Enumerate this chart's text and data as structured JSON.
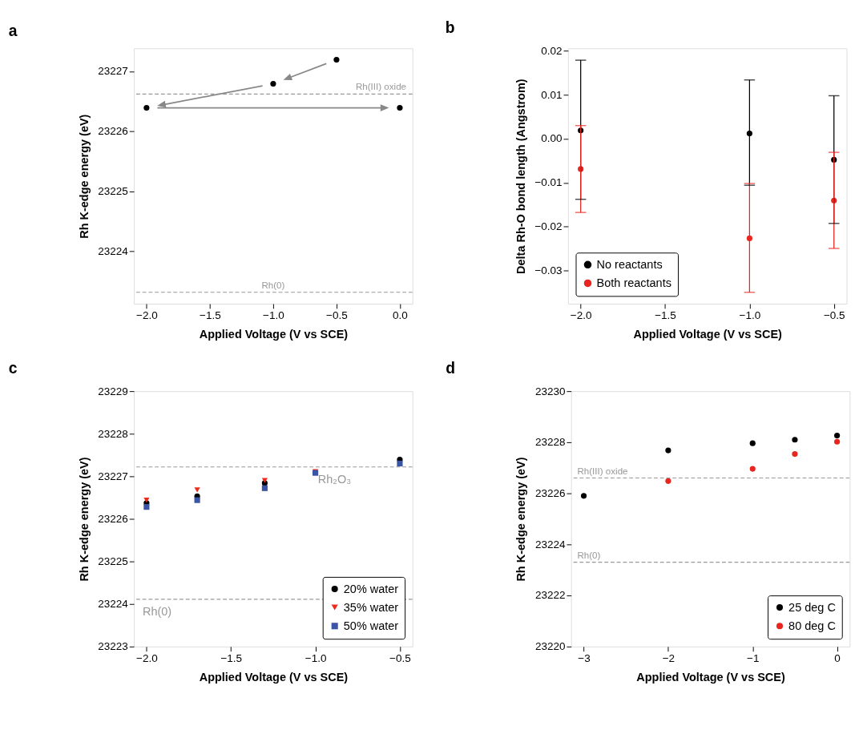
{
  "chart_data": [
    {
      "type": "scatter",
      "title": "a",
      "xlabel": "Applied Voltage (V vs SCE)",
      "ylabel": "Rh K-edge energy (eV)",
      "x": [
        -2,
        -1,
        -0.5,
        0
      ],
      "values": [
        23226.39,
        23226.79,
        23227.19,
        23226.39
      ],
      "color": "#000000",
      "marker": "circle",
      "xlim": [
        -2.1,
        0.1
      ],
      "ylim": [
        23223.13,
        23227.38
      ],
      "xticks": [
        {
          "value": -2,
          "label": "−2.0"
        },
        {
          "value": -1.5,
          "label": "−1.5"
        },
        {
          "value": -1,
          "label": "−1.0"
        },
        {
          "value": -0.5,
          "label": "−0.5"
        },
        {
          "value": 0,
          "label": "0.0"
        }
      ],
      "yticks": [
        23224,
        23225,
        23226,
        23227
      ],
      "ref_lines": [
        {
          "axis": "y",
          "value": 23226.62,
          "label": "Rh(III) oxide",
          "color": "#999999",
          "line_style": "dashed"
        },
        {
          "axis": "y",
          "value": 23223.32,
          "label": "Rh(0)",
          "color": "#999999",
          "line_style": "dashed"
        }
      ],
      "grid": false,
      "legend": false
    },
    {
      "type": "scatter",
      "title": "b",
      "xlabel": "Applied Voltage (V vs SCE)",
      "ylabel": "Delta Rh-O bond length (Angstrom)",
      "x": [
        -2,
        -1,
        -0.5
      ],
      "series": [
        {
          "name": "No reactants",
          "color": "#000000",
          "values": [
            0.0019,
            0.0012,
            -0.0048
          ],
          "errors": [
            [
              -0.0138,
              0.0179
            ],
            [
              -0.0106,
              0.0134
            ],
            [
              -0.0193,
              0.0098
            ]
          ]
        },
        {
          "name": "Both reactants",
          "color": "#e8251f",
          "values": [
            -0.0069,
            -0.0227,
            -0.0141
          ],
          "errors": [
            [
              -0.0168,
              0.003
            ],
            [
              -0.035,
              -0.0102
            ],
            [
              -0.025,
              -0.0031
            ]
          ]
        }
      ],
      "marker": "circle",
      "xlim": [
        -2.075,
        -0.425
      ],
      "ylim": [
        -0.0376,
        0.0206
      ],
      "xticks": [
        {
          "value": -2,
          "label": "−2.0"
        },
        {
          "value": -1.5,
          "label": "−1.5"
        },
        {
          "value": -1,
          "label": "−1.0"
        },
        {
          "value": -0.5,
          "label": "−0.5"
        }
      ],
      "yticks": [
        0.02,
        0.01,
        {
          "value": 0,
          "label": "0.00"
        },
        {
          "value": -0.01,
          "label": "−0.01"
        },
        {
          "value": -0.02,
          "label": "−0.02"
        },
        {
          "value": -0.03,
          "label": "−0.03"
        }
      ],
      "grid": false,
      "legend": "bottom left"
    },
    {
      "type": "scatter",
      "title": "c",
      "xlabel": "Applied Voltage (V vs SCE)",
      "ylabel": "Rh K-edge energy (eV)",
      "x": [
        -2,
        -1.7,
        -1.3,
        -1,
        -0.5
      ],
      "series": [
        {
          "name": "20% water",
          "color": "#000000",
          "marker": "circle",
          "values": [
            23226.37,
            23226.53,
            23226.84,
            null,
            23227.39
          ]
        },
        {
          "name": "35% water",
          "color": "#ee2a1c",
          "marker": "triangle",
          "values": [
            23226.44,
            23226.68,
            23226.9,
            23227.11,
            null
          ]
        },
        {
          "name": "50% water",
          "color": "#3a55a6",
          "marker": "square",
          "values": [
            23226.28,
            23226.44,
            23226.72,
            23227.08,
            23227.3
          ]
        }
      ],
      "xlim": [
        -2.075,
        -0.425
      ],
      "ylim": [
        23223,
        23229
      ],
      "xticks": [
        {
          "value": -2,
          "label": "−2.0"
        },
        {
          "value": -1.5,
          "label": "−1.5"
        },
        {
          "value": -1,
          "label": "−1.0"
        },
        {
          "value": -0.5,
          "label": "−0.5"
        }
      ],
      "yticks": [
        23223,
        23224,
        23225,
        23226,
        23227,
        23228,
        23229
      ],
      "ref_lines": [
        {
          "axis": "y",
          "value": 23227.22,
          "label": "Rh₂O₃",
          "color": "#999999",
          "line_style": "dashed"
        },
        {
          "axis": "y",
          "value": 23224.11,
          "label": "Rh(0)",
          "color": "#999999",
          "line_style": "dashed"
        }
      ],
      "grid": false,
      "legend": "bottom right"
    },
    {
      "type": "scatter",
      "title": "d",
      "xlabel": "Applied Voltage (V vs SCE)",
      "ylabel": "Rh K-edge energy (eV)",
      "series": [
        {
          "name": "25 deg C",
          "color": "#000000",
          "x": [
            -3,
            -2,
            -1,
            -0.5,
            0
          ],
          "values": [
            23225.9,
            23227.68,
            23227.96,
            23228.1,
            23228.26
          ]
        },
        {
          "name": "80 deg C",
          "color": "#e8251f",
          "x": [
            -2,
            -1,
            -0.5,
            0
          ],
          "values": [
            23226.48,
            23226.96,
            23227.54,
            23228.02
          ]
        }
      ],
      "marker": "circle",
      "xlim": [
        -3.15,
        0.15
      ],
      "ylim": [
        23220,
        23230
      ],
      "xticks": [
        {
          "value": -3,
          "label": "−3"
        },
        {
          "value": -2,
          "label": "−2"
        },
        {
          "value": -1,
          "label": "−1"
        },
        {
          "value": 0,
          "label": "0"
        }
      ],
      "yticks": [
        23220,
        23222,
        23224,
        23226,
        23228,
        23230
      ],
      "ref_lines": [
        {
          "axis": "y",
          "value": 23226.6,
          "label": "Rh(III) oxide",
          "color": "#999999",
          "line_style": "dashed"
        },
        {
          "axis": "y",
          "value": 23223.3,
          "label": "Rh(0)",
          "color": "#999999",
          "line_style": "dashed"
        }
      ],
      "grid": false,
      "legend": "bottom right"
    }
  ]
}
